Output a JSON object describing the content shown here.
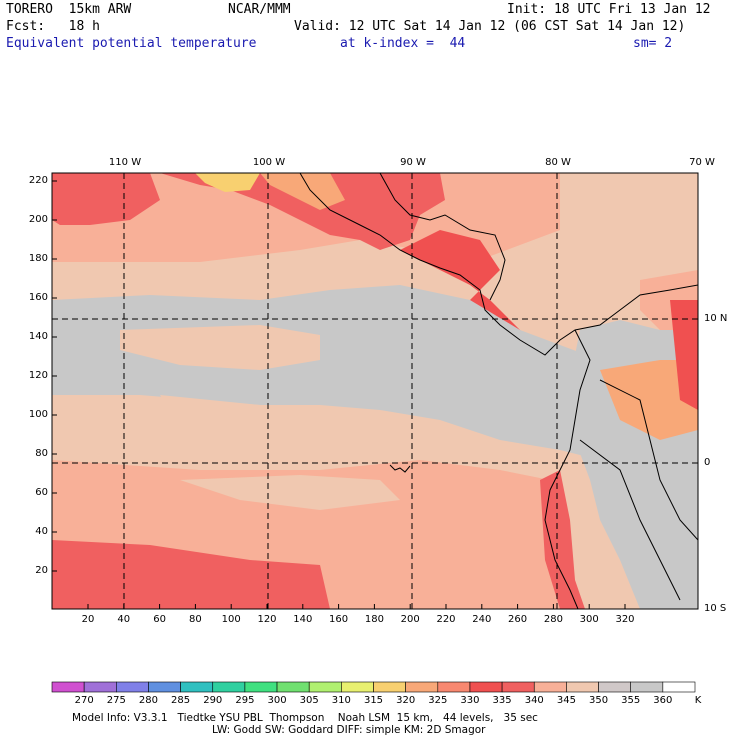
{
  "header": {
    "model": "TORERO  15km ARW",
    "center": "NCAR/MMM",
    "init": "Init: 18 UTC Fri 13 Jan 12",
    "fcst": "Fcst:   18 h",
    "valid": "Valid: 12 UTC Sat 14 Jan 12 (06 CST Sat 14 Jan 12)",
    "field": "Equivalent potential temperature",
    "level": "at k-index =  44",
    "smooth": "sm= 2"
  },
  "map": {
    "lon_labels": [
      "110 W",
      "100 W",
      "90 W",
      "80 W",
      "70 W"
    ],
    "lat_labels": [
      "10 N",
      "0",
      "10 S"
    ],
    "y_ticks": [
      "220",
      "200",
      "180",
      "160",
      "140",
      "120",
      "100",
      "80",
      "60",
      "40",
      "20"
    ],
    "x_ticks": [
      "20",
      "40",
      "60",
      "80",
      "100",
      "120",
      "140",
      "160",
      "180",
      "200",
      "220",
      "240",
      "260",
      "280",
      "300",
      "320"
    ]
  },
  "colorbar": {
    "labels": [
      "270",
      "275",
      "280",
      "285",
      "290",
      "295",
      "300",
      "305",
      "310",
      "315",
      "320",
      "325",
      "330",
      "335",
      "340",
      "345",
      "350",
      "355",
      "360"
    ],
    "unit": "K",
    "colors": [
      "#d050d0",
      "#a070d8",
      "#8080e8",
      "#6090e0",
      "#30c0c0",
      "#30d0a0",
      "#40e080",
      "#70e070",
      "#b0f070",
      "#e8f070",
      "#f8d070",
      "#f8a878",
      "#f88870",
      "#f05050",
      "#f06060",
      "#f8b098",
      "#f0c8b0",
      "#d0c8c8",
      "#c8c8c8",
      "#ffffff"
    ]
  },
  "footer": {
    "line1": "Model Info: V3.3.1   Tiedtke YSU PBL  Thompson    Noah LSM  15 km,   44 levels,   35 sec",
    "line2": "LW: Godd SW: Goddard DIFF: simple KM: 2D Smagor"
  }
}
